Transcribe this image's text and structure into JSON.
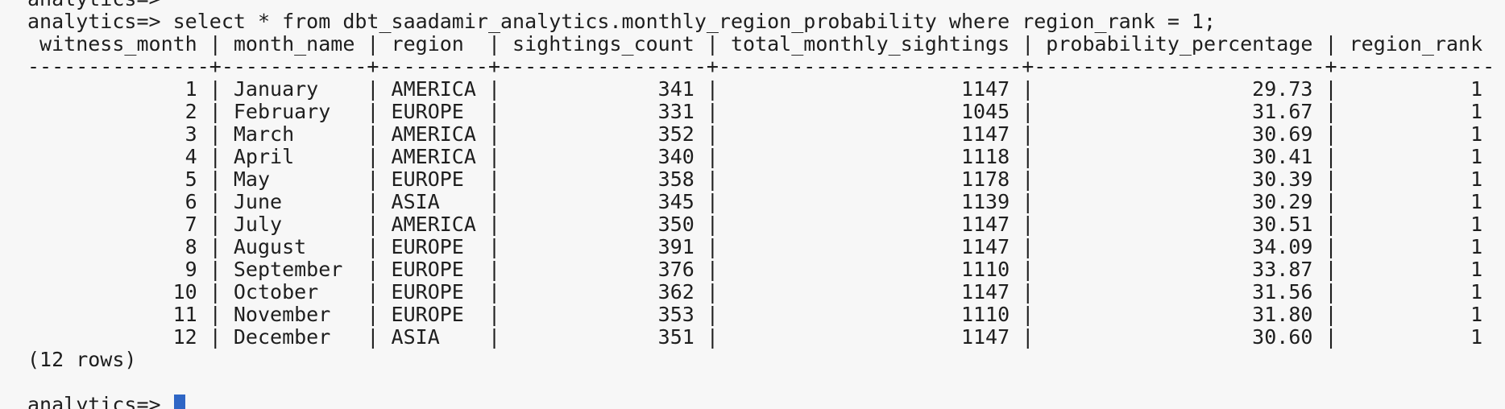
{
  "terminal": {
    "previous_prompt": "analytics=>",
    "command_line": "analytics=> select * from dbt_saadamir_analytics.monthly_region_probability where region_rank = 1;",
    "columns": [
      "witness_month",
      "month_name",
      "region",
      "sightings_count",
      "total_monthly_sightings",
      "probability_percentage",
      "region_rank"
    ],
    "header_line": " witness_month | month_name | region  | sightings_count | total_monthly_sightings | probability_percentage | region_rank ",
    "separator_line": "---------------+------------+---------+-----------------+-------------------------+------------------------+-------------",
    "rows": [
      [
        "1",
        "January",
        "AMERICA",
        "341",
        "1147",
        "29.73",
        "1"
      ],
      [
        "2",
        "February",
        "EUROPE",
        "331",
        "1045",
        "31.67",
        "1"
      ],
      [
        "3",
        "March",
        "AMERICA",
        "352",
        "1147",
        "30.69",
        "1"
      ],
      [
        "4",
        "April",
        "AMERICA",
        "340",
        "1118",
        "30.41",
        "1"
      ],
      [
        "5",
        "May",
        "EUROPE",
        "358",
        "1178",
        "30.39",
        "1"
      ],
      [
        "6",
        "June",
        "ASIA",
        "345",
        "1139",
        "30.29",
        "1"
      ],
      [
        "7",
        "July",
        "AMERICA",
        "350",
        "1147",
        "30.51",
        "1"
      ],
      [
        "8",
        "August",
        "EUROPE",
        "391",
        "1147",
        "34.09",
        "1"
      ],
      [
        "9",
        "September",
        "EUROPE",
        "376",
        "1110",
        "33.87",
        "1"
      ],
      [
        "10",
        "October",
        "EUROPE",
        "362",
        "1147",
        "31.56",
        "1"
      ],
      [
        "11",
        "November",
        "EUROPE",
        "353",
        "1110",
        "31.80",
        "1"
      ],
      [
        "12",
        "December",
        "ASIA",
        "351",
        "1147",
        "30.60",
        "1"
      ]
    ],
    "row_lines": [
      "             1 | January    | AMERICA |             341 |                    1147 |                  29.73 |           1",
      "             2 | February   | EUROPE  |             331 |                    1045 |                  31.67 |           1",
      "             3 | March      | AMERICA |             352 |                    1147 |                  30.69 |           1",
      "             4 | April      | AMERICA |             340 |                    1118 |                  30.41 |           1",
      "             5 | May        | EUROPE  |             358 |                    1178 |                  30.39 |           1",
      "             6 | June       | ASIA    |             345 |                    1139 |                  30.29 |           1",
      "             7 | July       | AMERICA |             350 |                    1147 |                  30.51 |           1",
      "             8 | August     | EUROPE  |             391 |                    1147 |                  34.09 |           1",
      "             9 | September  | EUROPE  |             376 |                    1110 |                  33.87 |           1",
      "            10 | October    | EUROPE  |             362 |                    1147 |                  31.56 |           1",
      "            11 | November   | EUROPE  |             353 |                    1110 |                  31.80 |           1",
      "            12 | December   | ASIA    |             351 |                    1147 |                  30.60 |           1"
    ],
    "row_count_text": "(12 rows)",
    "current_prompt": "analytics=> ",
    "cursor_color": "#2f66c5"
  }
}
